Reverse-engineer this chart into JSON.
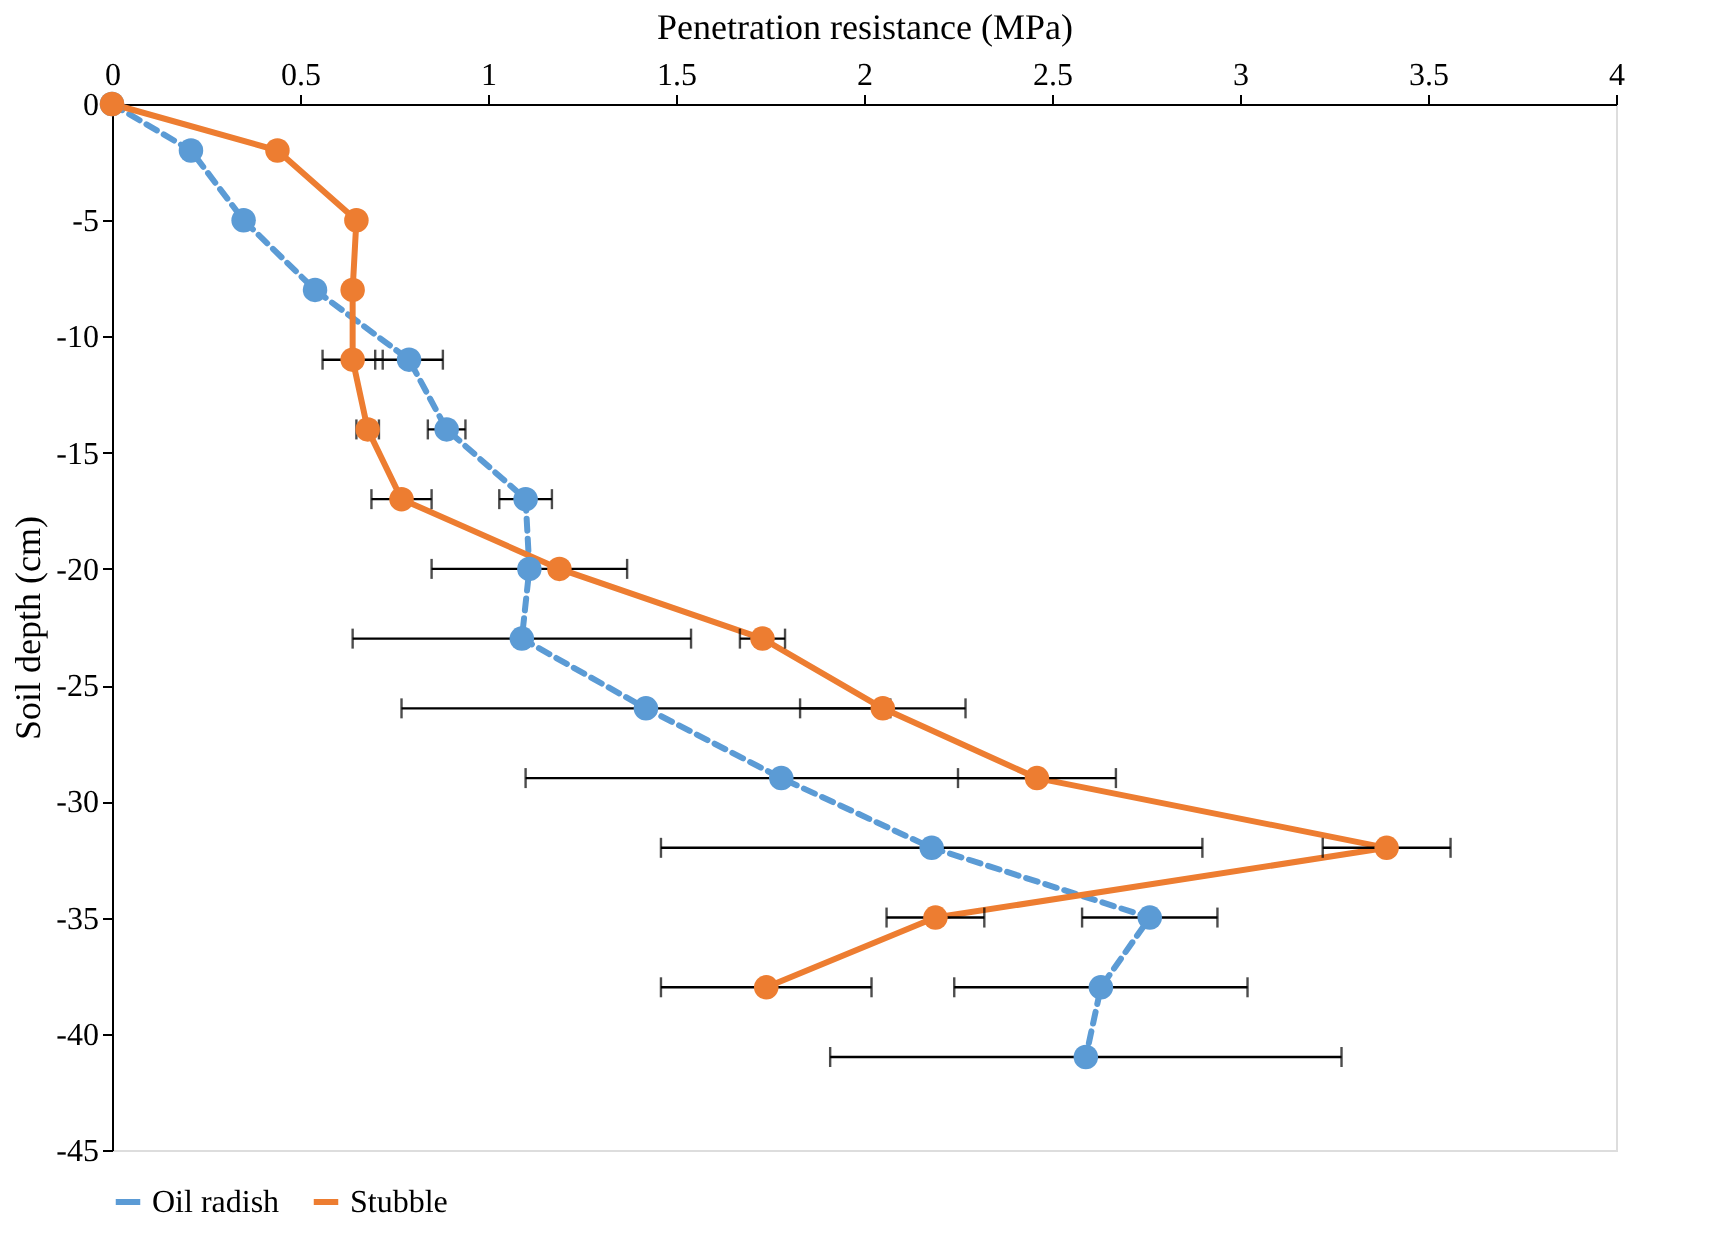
{
  "chart_data": {
    "type": "line",
    "xlabel": "Penetration resistance (MPa)",
    "ylabel": "Soil depth (cm)",
    "xlim": [
      0,
      4
    ],
    "xticks": [
      0,
      0.5,
      1,
      1.5,
      2,
      2.5,
      3,
      3.5,
      4
    ],
    "ylim": [
      -45,
      0
    ],
    "yticks": [
      -45,
      -40,
      -35,
      -30,
      -25,
      -20,
      -15,
      -10,
      -5,
      0
    ],
    "grid": false,
    "legend": "bottom",
    "marker": "circle",
    "series": [
      {
        "name": "Oil radish",
        "color": "#5b9bd5",
        "line_style": "dashed",
        "x": [
          0,
          0.21,
          0.35,
          0.54,
          0.79,
          0.89,
          1.1,
          1.11,
          1.09,
          1.42,
          1.78,
          2.18,
          2.76,
          2.63,
          2.59
        ],
        "values": [
          0,
          -2,
          -5,
          -8,
          -11,
          -14,
          -17,
          -20,
          -23,
          -26,
          -29,
          -32,
          -35,
          -38,
          -41
        ],
        "xerrors": [
          null,
          null,
          null,
          null,
          0.09,
          0.05,
          0.07,
          0.26,
          0.45,
          0.65,
          0.68,
          0.72,
          0.18,
          0.39,
          0.68
        ]
      },
      {
        "name": "Stubble",
        "color": "#ed7d31",
        "line_style": "solid",
        "x": [
          0,
          0.44,
          0.65,
          0.64,
          0.64,
          0.68,
          0.77,
          1.19,
          1.73,
          2.05,
          2.46,
          3.39,
          2.19,
          1.74
        ],
        "values": [
          0,
          -2,
          -5,
          -8,
          -11,
          -14,
          -17,
          -20,
          -23,
          -26,
          -29,
          -32,
          -35,
          -38
        ],
        "xerrors": [
          null,
          null,
          null,
          null,
          0.08,
          0.03,
          0.08,
          null,
          0.06,
          0.22,
          0.21,
          0.17,
          0.13,
          0.28
        ]
      }
    ]
  }
}
